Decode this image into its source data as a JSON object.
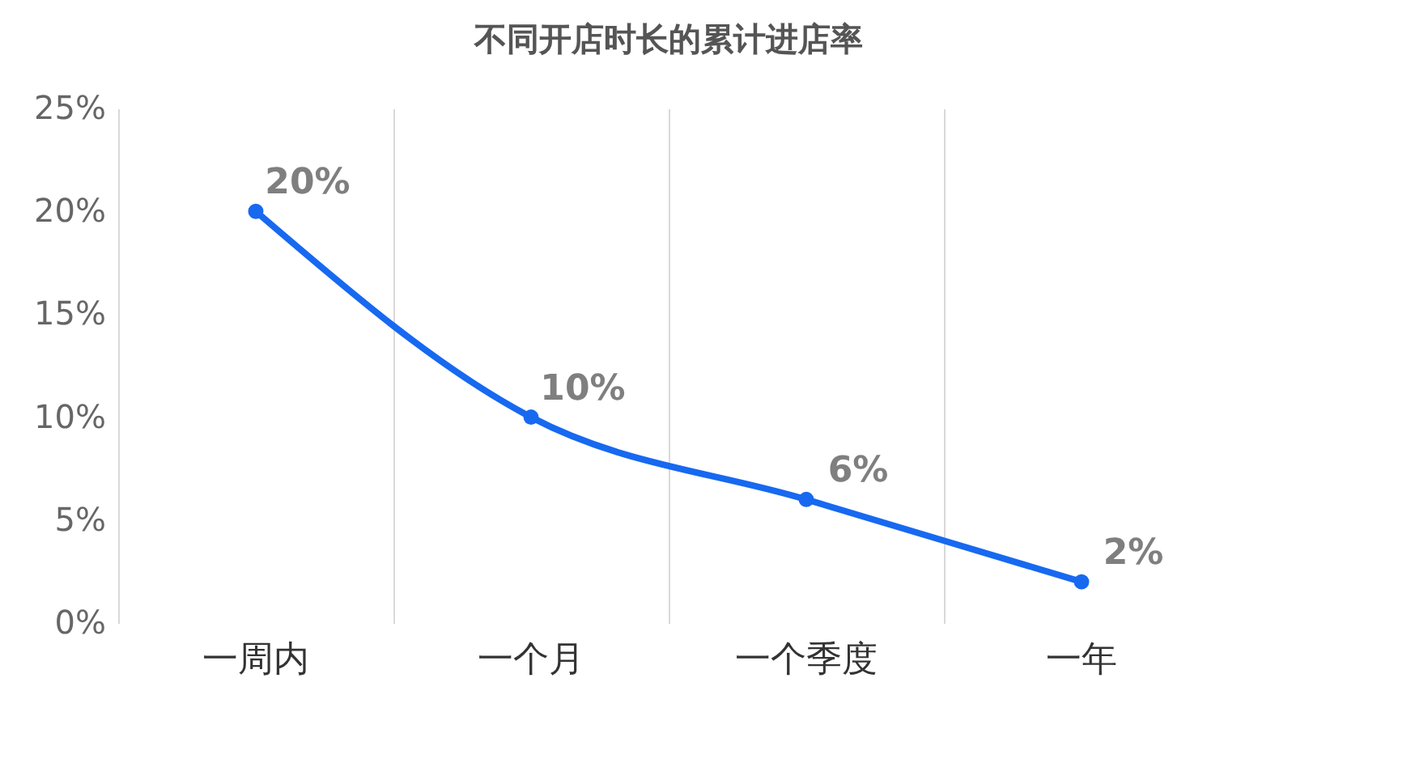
{
  "chart_data": {
    "type": "line",
    "title": "不同开店时长的累计进店率",
    "categories": [
      "一周内",
      "一个月",
      "一个季度",
      "一年"
    ],
    "series": [
      {
        "color": "#1769f0",
        "values": [
          20,
          10,
          6,
          2
        ],
        "value_labels": [
          "20%",
          "10%",
          "6%",
          "2%"
        ]
      }
    ],
    "ylim": [
      0,
      25
    ],
    "yticks": [
      {
        "value": 0,
        "label": "0%"
      },
      {
        "value": 5,
        "label": "5%"
      },
      {
        "value": 10,
        "label": "10%"
      },
      {
        "value": 15,
        "label": "15%"
      },
      {
        "value": 20,
        "label": "20%"
      },
      {
        "value": 25,
        "label": "25%"
      }
    ],
    "grid": "x",
    "marker": "circle",
    "line_style": "solid"
  }
}
